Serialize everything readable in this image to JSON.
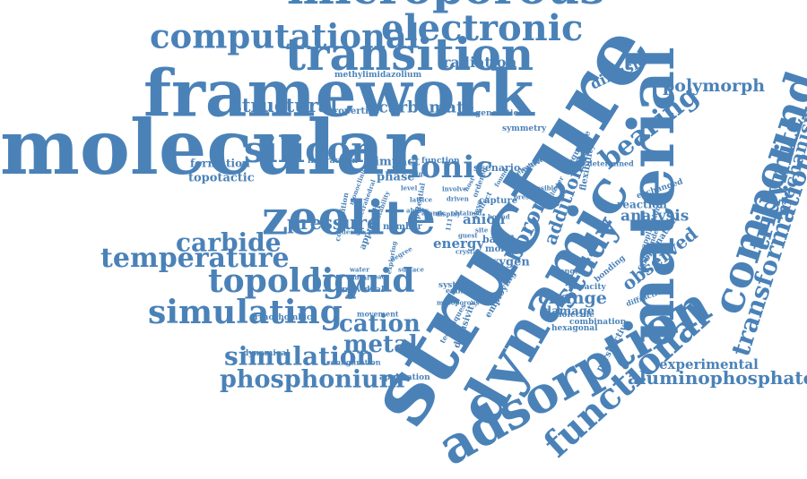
{
  "color": "#4a82b8",
  "words": [
    {
      "text": "structure",
      "rot": -58
    },
    {
      "text": "molecular",
      "rot": 0
    },
    {
      "text": "framework",
      "rot": 0
    },
    {
      "text": "dynamic",
      "rot": -60
    },
    {
      "text": "material",
      "rot": -90
    },
    {
      "text": "adsorption",
      "rot": -30
    },
    {
      "text": "transition",
      "rot": 0
    },
    {
      "text": "microporous",
      "rot": 0
    },
    {
      "text": "electronic",
      "rot": 0
    },
    {
      "text": "computational",
      "rot": 0
    },
    {
      "text": "zeolite",
      "rot": 0
    },
    {
      "text": "compound",
      "rot": -72
    },
    {
      "text": "functional",
      "rot": -42
    },
    {
      "text": "silicon",
      "rot": 0
    },
    {
      "text": "simulating",
      "rot": 0
    },
    {
      "text": "topology",
      "rot": 0
    },
    {
      "text": "liquid",
      "rot": 0
    },
    {
      "text": "tridymite",
      "rot": -75
    },
    {
      "text": "temperature",
      "rot": 0
    },
    {
      "text": "study",
      "rot": -60
    },
    {
      "text": "simulation",
      "rot": 0
    },
    {
      "text": "phosphonium",
      "rot": 0
    },
    {
      "text": "transformation",
      "rot": -72
    },
    {
      "text": "ionic",
      "rot": 0
    },
    {
      "text": "carbide",
      "rot": 0
    },
    {
      "text": "bearing",
      "rot": -38
    },
    {
      "text": "cation",
      "rot": 0
    },
    {
      "text": "metal",
      "rot": 0
    },
    {
      "text": "structural",
      "rot": 0
    },
    {
      "text": "aluminophosphate",
      "rot": 0
    },
    {
      "text": "mechanism",
      "rot": -75
    },
    {
      "text": "boron",
      "rot": -65
    },
    {
      "text": "observed",
      "rot": -38
    },
    {
      "text": "polymorph",
      "rot": 0
    },
    {
      "text": "diffusion",
      "rot": -25
    },
    {
      "text": "carbamate",
      "rot": 0
    },
    {
      "text": "additional",
      "rot": -70
    },
    {
      "text": "pressure",
      "rot": 0
    },
    {
      "text": "analysis",
      "rot": 0
    },
    {
      "text": "radiation",
      "rot": 0
    },
    {
      "text": "change",
      "rot": 0
    },
    {
      "text": "experimental",
      "rot": 0
    },
    {
      "text": "topotactic",
      "rot": 0
    },
    {
      "text": "formation",
      "rot": 0
    },
    {
      "text": "impact",
      "rot": 0
    },
    {
      "text": "phase",
      "rot": 0
    },
    {
      "text": "energy",
      "rot": 0
    },
    {
      "text": "oxygen",
      "rot": 0
    },
    {
      "text": "damage",
      "rot": 0
    },
    {
      "text": "reaction",
      "rot": 0
    },
    {
      "text": "anion",
      "rot": 0
    },
    {
      "text": "properties",
      "rot": 0
    },
    {
      "text": "methylimidazolium",
      "rot": 0
    },
    {
      "text": "generation",
      "rot": 0
    },
    {
      "text": "symmetry",
      "rot": 0
    },
    {
      "text": "interaction",
      "rot": 0
    },
    {
      "text": "function",
      "rot": 0
    },
    {
      "text": "scenario",
      "rot": 0
    },
    {
      "text": "exchanged",
      "rot": -18
    },
    {
      "text": "individual",
      "rot": 0
    },
    {
      "text": "system",
      "rot": 0
    },
    {
      "text": "orthorhombic",
      "rot": 0
    },
    {
      "text": "dynamical",
      "rot": 0
    },
    {
      "text": "configuration",
      "rot": 0
    },
    {
      "text": "application",
      "rot": 0
    },
    {
      "text": "movement",
      "rot": 0
    },
    {
      "text": "employing",
      "rot": -60
    },
    {
      "text": "diffusivity",
      "rot": -70
    },
    {
      "text": "capacity",
      "rot": 0
    },
    {
      "text": "molecule",
      "rot": 0
    },
    {
      "text": "hexagonal",
      "rot": 0
    },
    {
      "text": "combination",
      "rot": 0
    },
    {
      "text": "perspective",
      "rot": -60
    },
    {
      "text": "bonding",
      "rot": -40
    },
    {
      "text": "coordination",
      "rot": -55
    },
    {
      "text": "determined",
      "rot": 0
    },
    {
      "text": "flexibility",
      "rot": -80
    },
    {
      "text": "sequence",
      "rot": -60
    },
    {
      "text": "approach",
      "rot": -70
    },
    {
      "text": "capture",
      "rot": 0
    },
    {
      "text": "number",
      "rot": 0
    },
    {
      "text": "based",
      "rot": 0
    },
    {
      "text": "more",
      "rot": 0
    },
    {
      "text": "potential",
      "rot": -80
    },
    {
      "text": "composition",
      "rot": -80
    },
    {
      "text": "sieve",
      "rot": -75
    },
    {
      "text": "emission",
      "rot": 0
    },
    {
      "text": "diffraction",
      "rot": -20
    },
    {
      "text": "dependent",
      "rot": -70
    },
    {
      "text": "application",
      "rot": -70
    },
    {
      "text": "selective",
      "rot": -30
    },
    {
      "text": "strength",
      "rot": 0
    },
    {
      "text": "catalytic",
      "rot": -30
    },
    {
      "text": "techniques",
      "rot": -60
    },
    {
      "text": "mesoporous",
      "rot": 0
    },
    {
      "text": "ordered",
      "rot": -70
    },
    {
      "text": "affect",
      "rot": -60
    },
    {
      "text": "bound",
      "rot": 0
    },
    {
      "text": "driven",
      "rot": 0
    },
    {
      "text": "design",
      "rot": 0
    },
    {
      "text": "monoclinic",
      "rot": -70
    },
    {
      "text": "tetrahedral",
      "rot": -70
    },
    {
      "text": "stability",
      "rot": -70
    },
    {
      "text": "cluster",
      "rot": -60
    },
    {
      "text": "feasible",
      "rot": 0
    },
    {
      "text": "present",
      "rot": 0
    },
    {
      "text": "degree",
      "rot": -30
    },
    {
      "text": "surface",
      "rot": 0
    },
    {
      "text": "space",
      "rot": 0
    },
    {
      "text": "water",
      "rot": 0
    },
    {
      "text": "local",
      "rot": 0
    },
    {
      "text": "site",
      "rot": 0
    },
    {
      "text": "found",
      "rot": -60
    },
    {
      "text": "obtained",
      "rot": 0
    },
    {
      "text": "exploring",
      "rot": -80
    },
    {
      "text": "lattice",
      "rot": 0
    },
    {
      "text": "ability",
      "rot": 0
    },
    {
      "text": "atomic",
      "rot": 0
    },
    {
      "text": "display",
      "rot": 0
    },
    {
      "text": "crystal",
      "rot": 0
    },
    {
      "text": "guest",
      "rot": 0
    },
    {
      "text": "host",
      "rot": -60
    },
    {
      "text": "111",
      "rot": -80
    },
    {
      "text": "level",
      "rot": 0
    },
    {
      "text": "involve",
      "rot": 0
    },
    {
      "text": "high",
      "rot": 0
    }
  ]
}
